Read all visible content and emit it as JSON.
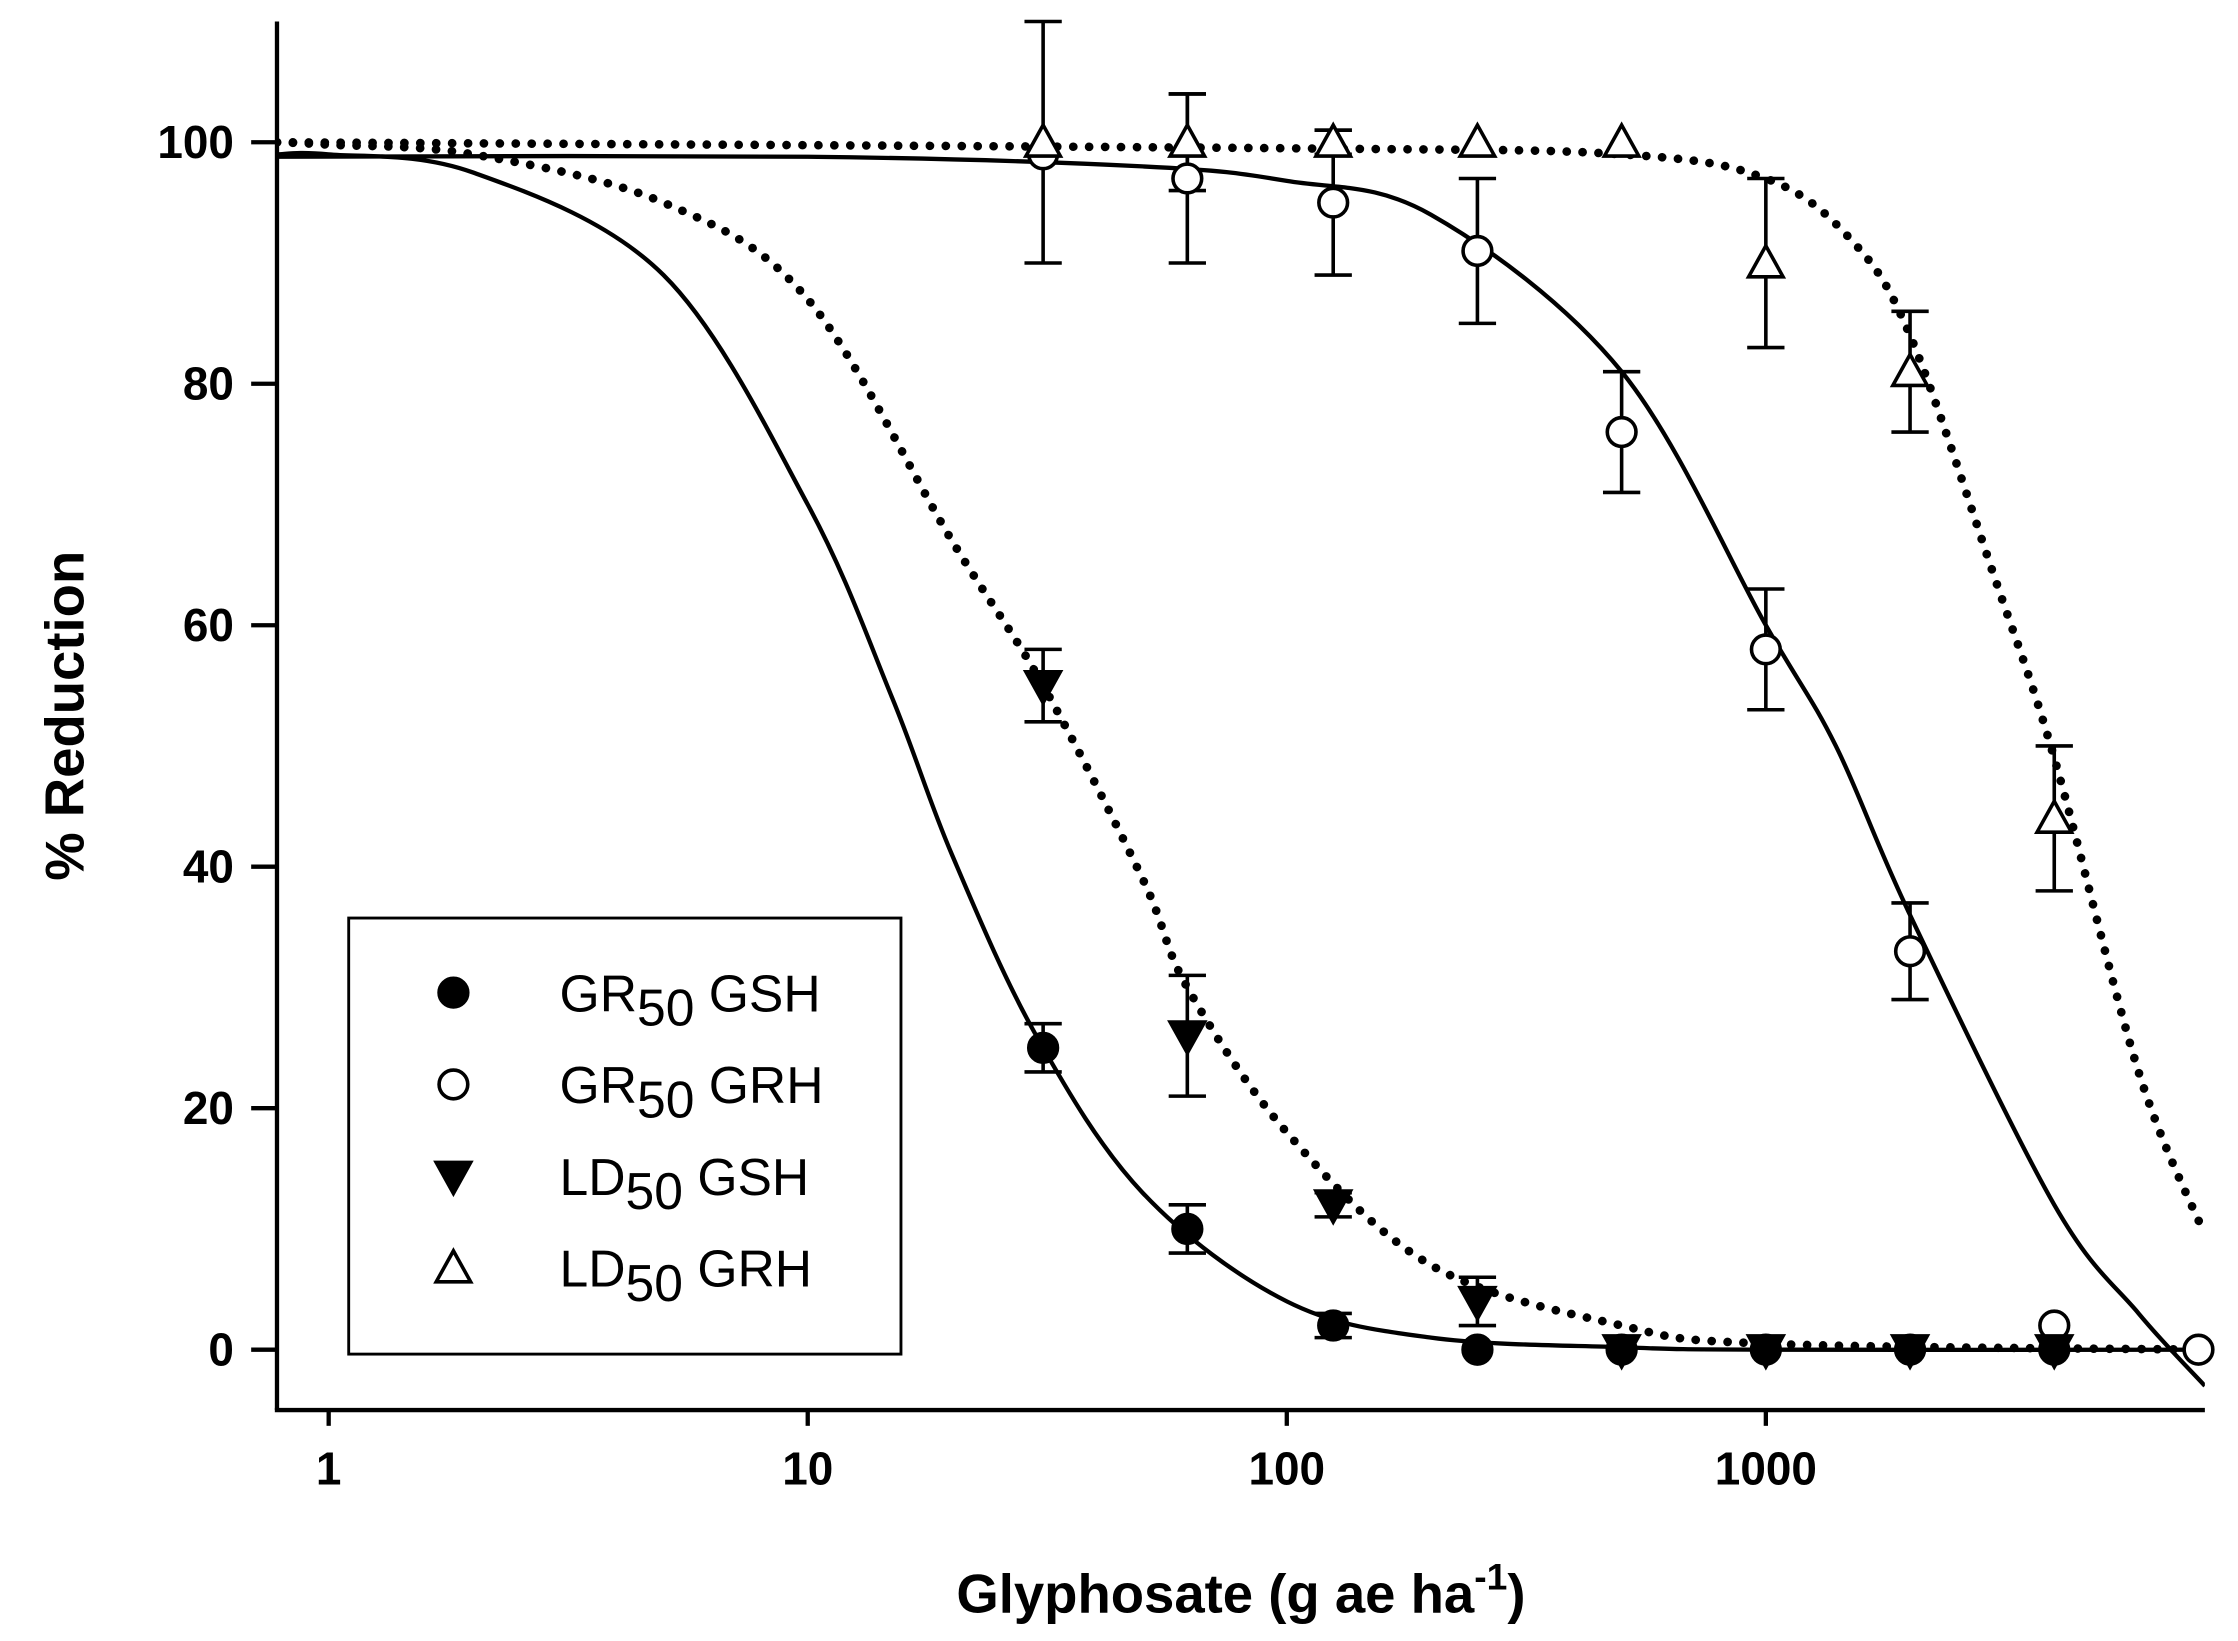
{
  "chart_data": {
    "type": "scatter",
    "x_label": [
      "Glyphosate (g ae ha",
      "-1",
      ")"
    ],
    "y_label": "% Reduction",
    "log_x": true,
    "xlim": [
      0.78,
      8250
    ],
    "xticks": [
      1,
      10,
      100,
      1000
    ],
    "ylim": [
      -5,
      110
    ],
    "yticks": [
      0,
      20,
      40,
      60,
      80,
      100
    ],
    "legend_position": "lower left",
    "series": [
      {
        "name": "GR50 GSH",
        "color": "#000000",
        "marker": "circle",
        "filled": true,
        "line_style": "solid",
        "x": [
          31,
          62,
          125,
          250,
          500,
          1000,
          2000,
          4000
        ],
        "values": [
          25,
          10,
          2,
          0,
          0,
          0,
          0,
          0
        ],
        "errors": [
          2,
          2,
          1,
          null,
          null,
          null,
          null,
          null
        ],
        "fit_x": [
          0.78,
          1,
          2,
          5,
          10,
          15,
          20,
          30,
          50,
          100,
          200,
          500,
          1000,
          8250
        ],
        "fit_y": [
          99,
          99,
          97.5,
          89,
          70,
          54,
          41,
          26,
          13,
          4,
          1,
          0.2,
          0,
          0
        ]
      },
      {
        "name": "GR50 GRH",
        "color": "#000000",
        "marker": "circle",
        "filled": false,
        "line_style": "solid",
        "x": [
          31,
          62,
          125,
          250,
          500,
          1000,
          2000,
          4000,
          8000
        ],
        "values": [
          99,
          97,
          95,
          91,
          76,
          58,
          33,
          2,
          0
        ],
        "errors": [
          null,
          7,
          6,
          6,
          5,
          5,
          4,
          null,
          null
        ],
        "fit_x": [
          0.78,
          10,
          50,
          100,
          200,
          500,
          1000,
          1400,
          2000,
          4000,
          6000,
          8250
        ],
        "fit_y": [
          98.8,
          98.8,
          98,
          96.8,
          94,
          81,
          60,
          50,
          36,
          12,
          3,
          -3
        ]
      },
      {
        "name": "LD50 GSH",
        "color": "#000000",
        "marker": "triangle-down",
        "filled": true,
        "line_style": "dotted",
        "x": [
          31,
          62,
          125,
          250,
          500,
          1000,
          2000,
          4000
        ],
        "values": [
          55,
          26,
          12,
          4,
          0,
          0,
          0,
          0
        ],
        "errors": [
          3,
          5,
          1,
          2,
          null,
          null,
          null,
          null
        ],
        "fit_x": [
          0.78,
          1,
          2,
          5,
          10,
          20,
          31,
          50,
          62,
          100,
          200,
          500,
          1000,
          8250
        ],
        "fit_y": [
          100,
          99.8,
          99,
          95,
          87,
          67,
          55,
          39,
          30,
          18,
          7,
          2,
          0.5,
          0
        ]
      },
      {
        "name": "LD50 GRH",
        "color": "#000000",
        "marker": "triangle-up",
        "filled": false,
        "line_style": "dotted",
        "x": [
          31,
          62,
          125,
          250,
          500,
          1000,
          2000,
          4000
        ],
        "values": [
          100,
          100,
          100,
          100,
          100,
          90,
          81,
          44
        ],
        "errors": [
          10,
          4,
          1,
          null,
          null,
          7,
          5,
          6
        ],
        "fit_x": [
          0.78,
          100,
          500,
          1000,
          1500,
          2000,
          3000,
          4000,
          6000,
          8250
        ],
        "fit_y": [
          100,
          99.5,
          99,
          97,
          92,
          84,
          64,
          49,
          23,
          9.5
        ]
      }
    ]
  }
}
